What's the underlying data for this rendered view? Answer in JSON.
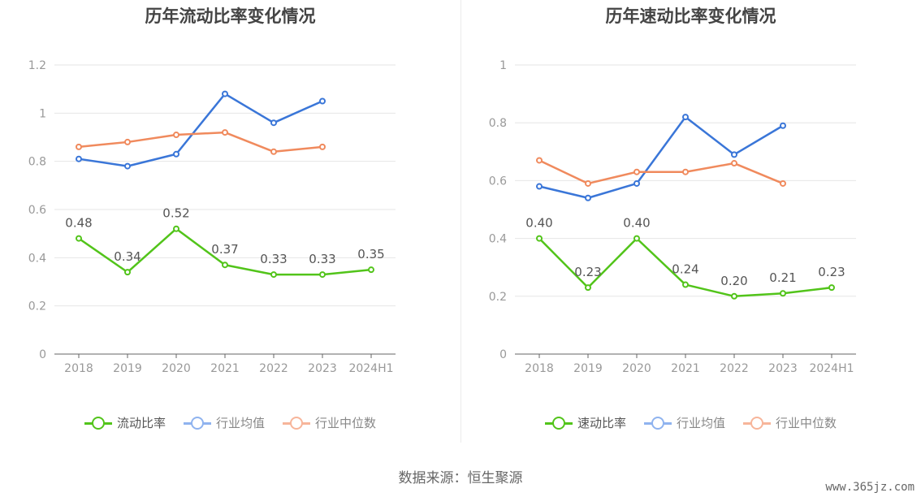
{
  "colors": {
    "green": "#52c41a",
    "blue": "#3a76d8",
    "orange": "#f08a5d",
    "axis": "#666666",
    "grid": "#e6e6e6",
    "tick_text": "#999999",
    "label_text": "#555555"
  },
  "chart_data": [
    {
      "type": "line",
      "title": "历年流动比率变化情况",
      "categories": [
        "2018",
        "2019",
        "2020",
        "2021",
        "2022",
        "2023",
        "2024H1"
      ],
      "ylim": [
        0,
        1.2
      ],
      "yticks": [
        0,
        0.2,
        0.4,
        0.6,
        0.8,
        1,
        1.2
      ],
      "ytick_labels": [
        "0",
        "0.2",
        "0.4",
        "0.6",
        "0.8",
        "1",
        "1.2"
      ],
      "series": [
        {
          "name": "流动比率",
          "color_key": "green",
          "values": [
            0.48,
            0.34,
            0.52,
            0.37,
            0.33,
            0.33,
            0.35
          ],
          "labels": [
            "0.48",
            "0.34",
            "0.52",
            "0.37",
            "0.33",
            "0.33",
            "0.35"
          ]
        },
        {
          "name": "行业均值",
          "color_key": "blue",
          "values": [
            0.81,
            0.78,
            0.83,
            1.08,
            0.96,
            1.05,
            null
          ]
        },
        {
          "name": "行业中位数",
          "color_key": "orange",
          "values": [
            0.86,
            0.88,
            0.91,
            0.92,
            0.84,
            0.86,
            null
          ]
        }
      ]
    },
    {
      "type": "line",
      "title": "历年速动比率变化情况",
      "categories": [
        "2018",
        "2019",
        "2020",
        "2021",
        "2022",
        "2023",
        "2024H1"
      ],
      "ylim": [
        0,
        1
      ],
      "yticks": [
        0,
        0.2,
        0.4,
        0.6,
        0.8,
        1
      ],
      "ytick_labels": [
        "0",
        "0.2",
        "0.4",
        "0.6",
        "0.8",
        "1"
      ],
      "series": [
        {
          "name": "速动比率",
          "color_key": "green",
          "values": [
            0.4,
            0.23,
            0.4,
            0.24,
            0.2,
            0.21,
            0.23
          ],
          "labels": [
            "0.40",
            "0.23",
            "0.40",
            "0.24",
            "0.20",
            "0.21",
            "0.23"
          ]
        },
        {
          "name": "行业均值",
          "color_key": "blue",
          "values": [
            0.58,
            0.54,
            0.59,
            0.82,
            0.69,
            0.79,
            null
          ]
        },
        {
          "name": "行业中位数",
          "color_key": "orange",
          "values": [
            0.67,
            0.59,
            0.63,
            0.63,
            0.66,
            0.59,
            null
          ]
        }
      ]
    }
  ],
  "footer": {
    "source": "数据来源：恒生聚源"
  },
  "watermark": "www.365jz.com"
}
